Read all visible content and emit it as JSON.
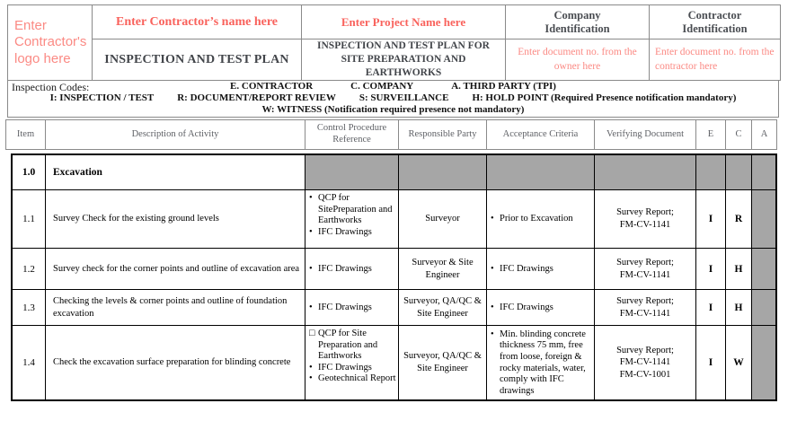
{
  "header": {
    "logo_placeholder": "Enter\nContractor's\nlogo here",
    "contractor_name_placeholder": "Enter Contractor’s name here",
    "project_name_placeholder": "Enter Project Name here",
    "company_id_title": "Company\nIdentification",
    "contractor_id_title": "Contractor\nIdentification",
    "plan_title": "INSPECTION AND TEST PLAN",
    "plan_subtitle": "INSPECTION AND TEST PLAN FOR\nSITE PREPARATION AND EARTHWORKS",
    "owner_doc_placeholder": "Enter document no. from the\nowner here",
    "contractor_doc_placeholder": "Enter document no. from the\ncontractor here"
  },
  "inspection_codes": {
    "label": "Inspection Codes:",
    "line1": [
      "E. CONTRACTOR",
      "C. COMPANY",
      "A. THIRD PARTY (TPI)"
    ],
    "line2": [
      "I: INSPECTION / TEST",
      "R: DOCUMENT/REPORT REVIEW",
      "S: SURVEILLANCE",
      "H: HOLD POINT (Required Presence notification mandatory)"
    ],
    "line3": [
      "W: WITNESS (Notification required presence not mandatory)"
    ]
  },
  "table": {
    "columns": [
      "Item",
      "Description of Activity",
      "Control Procedure Reference",
      "Responsible Party",
      "Acceptance Criteria",
      "Verifying Document",
      "E",
      "C",
      "A"
    ],
    "rows": [
      {
        "item": "1.0",
        "description": "Excavation",
        "responsible": "",
        "verifying": "",
        "e": "",
        "c": "",
        "a": ""
      },
      {
        "item": "1.1",
        "description": "Survey Check for the existing ground levels",
        "control": [
          {
            "m": "•",
            "t": "QCP for SitePreparation and Earthworks"
          },
          {
            "m": "•",
            "t": "IFC Drawings"
          }
        ],
        "responsible": "Surveyor",
        "acceptance": [
          {
            "m": "•",
            "t": "Prior to Excavation"
          }
        ],
        "verifying": "Survey Report;\nFM-CV-1141",
        "e": "I",
        "c": "R",
        "a": ""
      },
      {
        "item": "1.2",
        "description": "Survey check for the corner points and outline of excavation area",
        "control": [
          {
            "m": "•",
            "t": "IFC Drawings"
          }
        ],
        "responsible": "Surveyor & Site Engineer",
        "acceptance": [
          {
            "m": "•",
            "t": "IFC Drawings"
          }
        ],
        "verifying": "Survey Report;\nFM-CV-1141",
        "e": "I",
        "c": "H",
        "a": ""
      },
      {
        "item": "1.3",
        "description": "Checking the levels & corner points and outline of foundation excavation",
        "control": [
          {
            "m": "•",
            "t": "IFC Drawings"
          }
        ],
        "responsible": "Surveyor, QA/QC & Site Engineer",
        "acceptance": [
          {
            "m": "•",
            "t": "IFC Drawings"
          }
        ],
        "verifying": "Survey Report;\nFM-CV-1141",
        "e": "I",
        "c": "H",
        "a": ""
      },
      {
        "item": "1.4",
        "description": "Check the excavation surface preparation for blinding concrete",
        "control": [
          {
            "m": "□",
            "t": "QCP for Site Preparation and Earthworks"
          },
          {
            "m": "•",
            "t": "IFC Drawings"
          },
          {
            "m": "•",
            "t": "Geotechnical Report"
          }
        ],
        "responsible": "Surveyor, QA/QC & Site Engineer",
        "acceptance": [
          {
            "m": "•",
            "t": "Min. blinding concrete thickness 75 mm, free from loose, foreign & rocky materials, water, comply with IFC drawings"
          }
        ],
        "verifying": "Survey Report;\nFM-CV-1141\nFM-CV-1001",
        "e": "I",
        "c": "W",
        "a": ""
      }
    ]
  },
  "colors": {
    "placeholder_red": "#f9625c",
    "placeholder_salmon": "#fb8a84",
    "title_gray": "#42454a",
    "header_label_gray": "#5f6166",
    "shade_gray": "#a6a6a6"
  }
}
